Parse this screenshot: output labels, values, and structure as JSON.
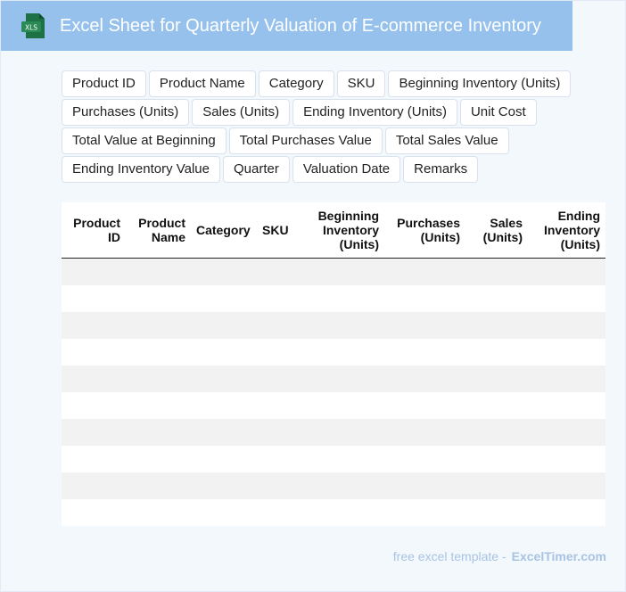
{
  "header": {
    "title": "Excel Sheet for Quarterly Valuation of E-commerce Inventory",
    "icon_label": "XLS",
    "icon": "excel-file-icon"
  },
  "fields": {
    "row1": [
      "Product ID",
      "Product Name",
      "Category",
      "SKU",
      "Beginning Inventory (Units)"
    ],
    "row2": [
      "Purchases (Units)",
      "Sales (Units)",
      "Ending Inventory (Units)",
      "Unit Cost"
    ],
    "row3": [
      "Total Value at Beginning",
      "Total Purchases Value",
      "Total Sales Value"
    ],
    "row4": [
      "Ending Inventory Value",
      "Quarter",
      "Valuation Date",
      "Remarks"
    ]
  },
  "table": {
    "headers": [
      [
        "Product",
        "ID"
      ],
      [
        "Product",
        "Name"
      ],
      [
        "Category"
      ],
      [
        "SKU"
      ],
      [
        "Beginning",
        "Inventory",
        "(Units)"
      ],
      [
        "Purchases",
        "(Units)"
      ],
      [
        "Sales",
        "(Units)"
      ],
      [
        "Ending",
        "Inventory",
        "(Units)"
      ]
    ],
    "empty_rows": 10
  },
  "footer": {
    "lead": "free excel template -",
    "brand": "ExcelTimer.com"
  },
  "colors": {
    "title_bar": "#96c1ec",
    "background": "#f3f8fd",
    "excel_green": "#1e7145",
    "row_stripe": "#f2f2f2"
  }
}
